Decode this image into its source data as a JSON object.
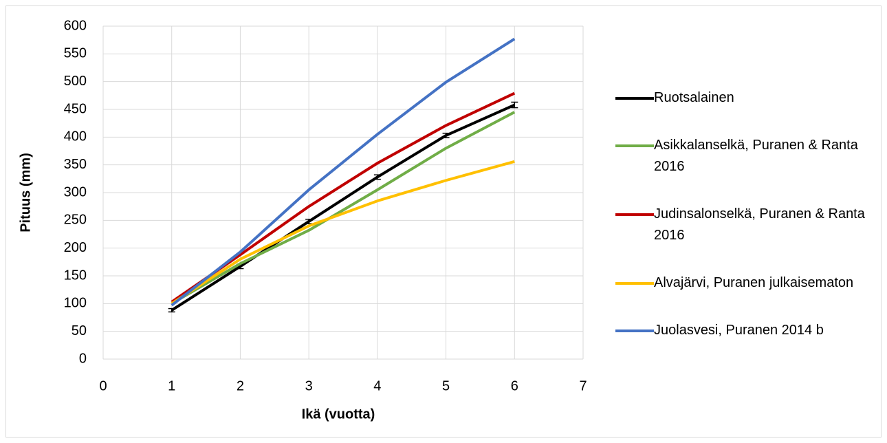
{
  "chart_data": {
    "type": "line",
    "x_label": "Ikä (vuotta)",
    "y_label": "Pituus (mm)",
    "x": [
      1,
      2,
      3,
      4,
      5,
      6
    ],
    "xlim": [
      0,
      7
    ],
    "xticks": [
      0,
      1,
      2,
      3,
      4,
      5,
      6,
      7
    ],
    "ylim": [
      0,
      600
    ],
    "yticks": [
      0,
      50,
      100,
      150,
      200,
      250,
      300,
      350,
      400,
      450,
      500,
      550,
      600
    ],
    "grid": true,
    "legend": "right",
    "series": [
      {
        "name": "Ruotsalainen",
        "color": "#000000",
        "values": [
          88,
          167,
          248,
          328,
          403,
          458
        ],
        "errors": [
          3,
          4,
          4,
          4,
          4,
          5
        ]
      },
      {
        "name": "Asikkalanselkä, Puranen & Ranta 2016",
        "color": "#70ad47",
        "values": [
          100,
          172,
          232,
          305,
          380,
          445
        ]
      },
      {
        "name": "Judinsalonselkä, Puranen & Ranta 2016",
        "color": "#c00000",
        "values": [
          103,
          188,
          275,
          353,
          421,
          479
        ]
      },
      {
        "name": "Alvajärvi, Puranen julkaisematon",
        "color": "#ffc000",
        "values": [
          100,
          180,
          240,
          285,
          322,
          356
        ]
      },
      {
        "name": "Juolasvesi, Puranen 2014 b",
        "color": "#4472c4",
        "values": [
          97,
          193,
          305,
          405,
          499,
          577
        ]
      }
    ]
  }
}
